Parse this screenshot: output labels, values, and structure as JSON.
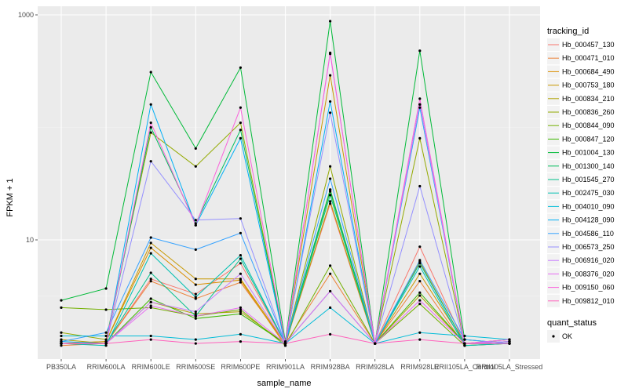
{
  "chart_data": {
    "type": "line",
    "title": "",
    "xlabel": "sample_name",
    "ylabel": "FPKM + 1",
    "y_scale": "log10",
    "ylim": [
      1,
      1000
    ],
    "y_ticks": [
      10,
      1000
    ],
    "y_tick_labels": [
      "10",
      "1000"
    ],
    "grid": true,
    "categories": [
      "PB350LA",
      "RRIM600LA",
      "RRIM600LE",
      "RRIM600SE",
      "RRIM600PE",
      "RRIM901LA",
      "RRIM928BA",
      "RRIM928LA",
      "RRIM928LE",
      "RRII105LA_Control",
      "RRII105LA_Stressed"
    ],
    "legend": {
      "title": "tracking_id",
      "position": "right"
    },
    "status_legend": {
      "title": "quant_status",
      "items": [
        "OK"
      ]
    },
    "series": [
      {
        "name": "Hb_000457_130",
        "color": "#F8766D",
        "values": [
          1.2,
          1.2,
          4.5,
          3.3,
          6.2,
          1.2,
          21,
          1.2,
          8.7,
          1.2,
          1.3
        ]
      },
      {
        "name": "Hb_000471_010",
        "color": "#EC8239",
        "values": [
          1.15,
          1.2,
          4.3,
          3.0,
          4.2,
          1.2,
          5.0,
          1.2,
          4.3,
          1.15,
          1.2
        ]
      },
      {
        "name": "Hb_000684_490",
        "color": "#DB8E00",
        "values": [
          1.2,
          1.25,
          8.5,
          4.0,
          4.4,
          1.15,
          28,
          1.2,
          6.4,
          1.2,
          1.25
        ]
      },
      {
        "name": "Hb_000753_180",
        "color": "#C79800",
        "values": [
          1.2,
          1.25,
          9.4,
          4.5,
          4.5,
          1.2,
          290,
          1.2,
          5.0,
          1.2,
          1.3
        ]
      },
      {
        "name": "Hb_000834_210",
        "color": "#AFA100",
        "values": [
          1.3,
          1.2,
          2.8,
          2.2,
          2.3,
          1.2,
          22,
          1.2,
          3.2,
          1.2,
          1.2
        ]
      },
      {
        "name": "Hb_000836_260",
        "color": "#93AA00",
        "values": [
          1.5,
          1.3,
          90,
          45,
          110,
          1.2,
          45,
          1.2,
          80,
          1.2,
          1.25
        ]
      },
      {
        "name": "Hb_000844_090",
        "color": "#72B000",
        "values": [
          2.5,
          2.4,
          2.5,
          2.1,
          2.4,
          1.15,
          5.9,
          1.2,
          2.7,
          1.15,
          1.2
        ]
      },
      {
        "name": "Hb_000847_120",
        "color": "#3DB700",
        "values": [
          1.2,
          1.2,
          3.0,
          2.0,
          2.2,
          1.2,
          27,
          1.2,
          3.4,
          1.2,
          1.2
        ]
      },
      {
        "name": "Hb_001004_130",
        "color": "#00BA38",
        "values": [
          2.9,
          3.7,
          310,
          65,
          340,
          1.25,
          880,
          1.2,
          480,
          1.3,
          1.2
        ]
      },
      {
        "name": "Hb_001300_140",
        "color": "#00BD5C",
        "values": [
          1.2,
          1.2,
          100,
          14,
          95,
          1.2,
          28,
          1.2,
          160,
          1.2,
          1.2
        ]
      },
      {
        "name": "Hb_001545_270",
        "color": "#00C08B",
        "values": [
          1.2,
          1.2,
          5.1,
          2.1,
          6.8,
          1.2,
          25,
          1.2,
          6.2,
          1.2,
          1.25
        ]
      },
      {
        "name": "Hb_002475_030",
        "color": "#00C0B2",
        "values": [
          1.2,
          1.15,
          7.6,
          3.1,
          7.3,
          1.2,
          3.5,
          1.2,
          5.8,
          1.15,
          1.2
        ]
      },
      {
        "name": "Hb_004010_090",
        "color": "#00BCD8",
        "values": [
          1.4,
          1.4,
          1.4,
          1.3,
          1.45,
          1.2,
          2.5,
          1.2,
          1.5,
          1.4,
          1.3
        ]
      },
      {
        "name": "Hb_004128_090",
        "color": "#00B0F6",
        "values": [
          1.25,
          1.2,
          160,
          13.5,
          80,
          1.15,
          170,
          1.2,
          150,
          1.2,
          1.2
        ]
      },
      {
        "name": "Hb_004586_110",
        "color": "#35A2FF",
        "values": [
          1.25,
          1.5,
          10.5,
          8.2,
          11.5,
          1.2,
          35,
          1.2,
          6.6,
          1.3,
          1.2
        ]
      },
      {
        "name": "Hb_006573_250",
        "color": "#9590FF",
        "values": [
          1.2,
          1.2,
          50,
          15,
          15.5,
          1.2,
          135,
          1.2,
          30,
          1.2,
          1.25
        ]
      },
      {
        "name": "Hb_006916_020",
        "color": "#C77CFF",
        "values": [
          1.2,
          1.2,
          2.8,
          2.3,
          5.0,
          1.2,
          450,
          1.2,
          160,
          1.2,
          1.25
        ]
      },
      {
        "name": "Hb_008376_020",
        "color": "#E76BF3",
        "values": [
          1.2,
          1.2,
          2.6,
          2.1,
          2.5,
          1.2,
          3.5,
          1.2,
          2.9,
          1.2,
          1.3
        ]
      },
      {
        "name": "Hb_009150_060",
        "color": "#FA62DB",
        "values": [
          1.2,
          1.2,
          110,
          13.5,
          150,
          1.2,
          460,
          1.2,
          180,
          1.2,
          1.2
        ]
      },
      {
        "name": "Hb_009812_010",
        "color": "#FF62BC",
        "values": [
          1.2,
          1.2,
          1.3,
          1.2,
          1.25,
          1.2,
          1.45,
          1.2,
          1.3,
          1.2,
          1.2
        ]
      }
    ]
  }
}
